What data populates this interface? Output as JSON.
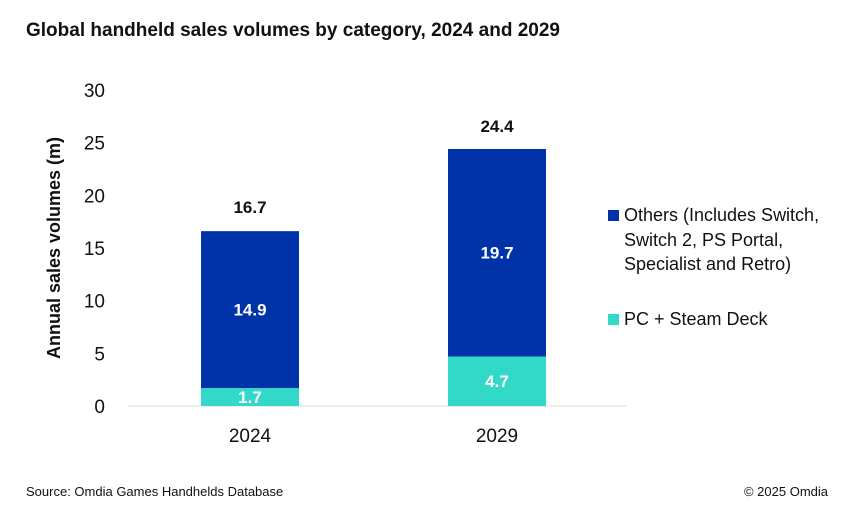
{
  "title": "Global handheld sales volumes by category, 2024 and 2029",
  "source": "Source: Omdia Games Handhelds Database",
  "copyright": "© 2025 Omdia",
  "colors": {
    "others": "#0033A8",
    "pc": "#33D9C8"
  },
  "legend": {
    "others": "Others (Includes Switch, Switch 2, PS Portal, Specialist and Retro)",
    "pc": "PC + Steam Deck"
  },
  "chart_data": {
    "type": "bar",
    "stacked": true,
    "title": "Global handheld sales volumes by category, 2024 and 2029",
    "xlabel": "",
    "ylabel": "Annual sales volumes (m)",
    "ylim": [
      0,
      30
    ],
    "yticks": [
      "0",
      "5",
      "10",
      "15",
      "20",
      "25",
      "30"
    ],
    "grid": false,
    "legend_position": "right",
    "categories": [
      "2024",
      "2029"
    ],
    "series": [
      {
        "name": "PC + Steam Deck",
        "key": "pc",
        "values": [
          1.7,
          4.7
        ],
        "labels": [
          "1.7",
          "4.7"
        ]
      },
      {
        "name": "Others (Includes Switch, Switch 2, PS Portal, Specialist and Retro)",
        "key": "others",
        "values": [
          14.9,
          19.7
        ],
        "labels": [
          "14.9",
          "19.7"
        ]
      }
    ],
    "totals": [
      16.7,
      24.4
    ],
    "total_labels": [
      "16.7",
      "24.4"
    ]
  }
}
